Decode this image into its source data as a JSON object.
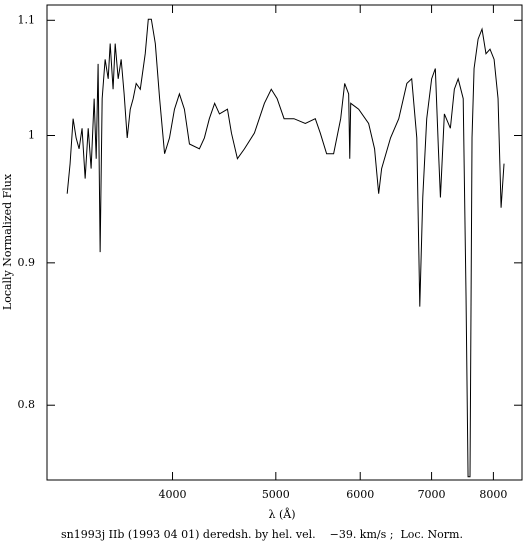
{
  "chart_data": {
    "type": "line",
    "caption": "sn1993j IIb (1993 04 01) deredsh. by hel. vel.    −39. km/s ;  Loc. Norm.",
    "xlabel": "λ (Å)",
    "ylabel": "Locally Normalized Flux",
    "xscale": "log",
    "yscale": "log",
    "color": "#000000",
    "xlim": [
      3050,
      8510
    ],
    "ylim": [
      0.752,
      1.114
    ],
    "xticks": [
      4000,
      5000,
      6000,
      7000,
      8000
    ],
    "yticks": [
      0.8,
      0.9,
      1,
      1.1
    ],
    "x": [
      3186,
      3206,
      3227,
      3248,
      3269,
      3290,
      3312,
      3334,
      3355,
      3377,
      3392,
      3406,
      3421,
      3436,
      3458,
      3481,
      3496,
      3518,
      3534,
      3557,
      3580,
      3603,
      3627,
      3651,
      3674,
      3698,
      3731,
      3771,
      3796,
      3821,
      3854,
      3890,
      3932,
      3974,
      4017,
      4060,
      4104,
      4149,
      4239,
      4285,
      4331,
      4381,
      4427,
      4504,
      4543,
      4602,
      4672,
      4774,
      4878,
      4951,
      5014,
      5090,
      5200,
      5329,
      5445,
      5504,
      5580,
      5665,
      5752,
      5802,
      5852,
      5866,
      5878,
      5980,
      6110,
      6189,
      6244,
      6284,
      6406,
      6521,
      6636,
      6706,
      6780,
      6824,
      6868,
      6927,
      7001,
      7057,
      7104,
      7135,
      7196,
      7290,
      7353,
      7414,
      7495,
      7541,
      7574,
      7606,
      7639,
      7673,
      7740,
      7806,
      7873,
      7942,
      8012,
      8081,
      8134,
      8186
    ],
    "values": [
      0.953,
      0.977,
      1.014,
      0.998,
      0.989,
      1.006,
      0.965,
      1.006,
      0.973,
      1.031,
      0.981,
      1.061,
      0.908,
      1.031,
      1.065,
      1.048,
      1.079,
      1.039,
      1.079,
      1.048,
      1.065,
      1.035,
      0.998,
      1.022,
      1.031,
      1.044,
      1.039,
      1.07,
      1.101,
      1.101,
      1.079,
      1.031,
      0.985,
      0.998,
      1.022,
      1.035,
      1.022,
      0.993,
      0.989,
      0.998,
      1.014,
      1.027,
      1.018,
      1.022,
      1.002,
      0.981,
      0.989,
      1.002,
      1.027,
      1.039,
      1.031,
      1.014,
      1.014,
      1.01,
      1.014,
      1.002,
      0.985,
      0.985,
      1.014,
      1.044,
      1.035,
      0.981,
      1.027,
      1.022,
      1.01,
      0.989,
      0.953,
      0.973,
      0.998,
      1.014,
      1.044,
      1.048,
      0.998,
      0.868,
      0.95,
      1.014,
      1.048,
      1.057,
      0.989,
      0.95,
      1.018,
      1.006,
      1.039,
      1.048,
      1.031,
      0.875,
      0.754,
      0.754,
      0.998,
      1.057,
      1.083,
      1.092,
      1.07,
      1.074,
      1.065,
      1.031,
      0.942,
      0.977
    ]
  }
}
